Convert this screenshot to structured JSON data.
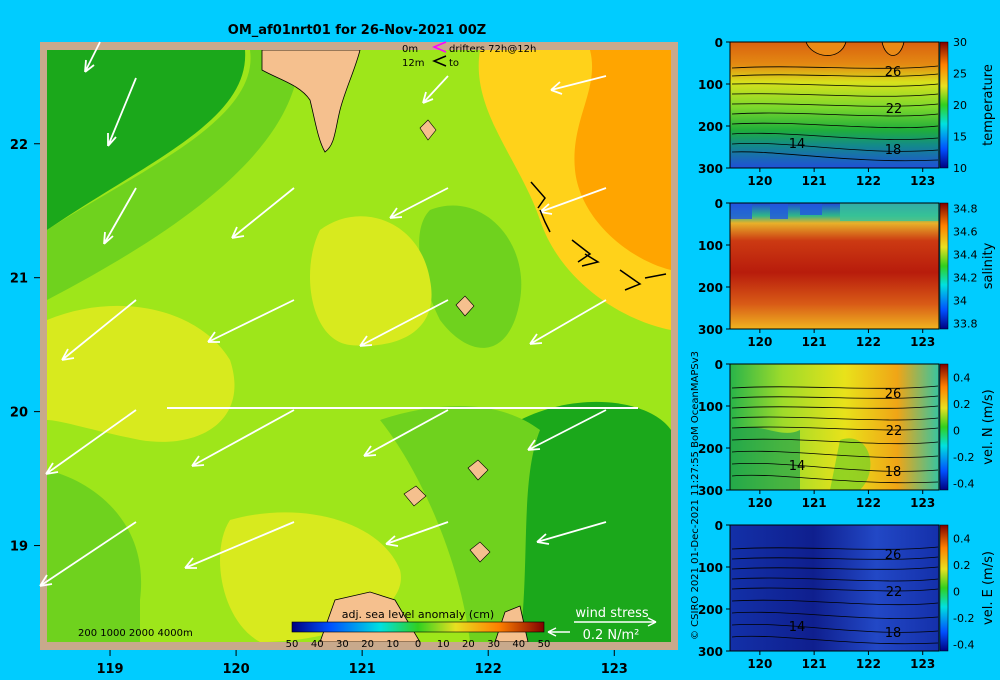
{
  "title": "OM_af01nrt01 for 26-Nov-2021 00Z",
  "legend": {
    "drifter_depth_0": "0m",
    "drifter_depth_12": "12m",
    "drifters_label": "drifters 72h@12h",
    "to_label": "to"
  },
  "map": {
    "x_ticks": [
      "119",
      "120",
      "121",
      "122",
      "123"
    ],
    "y_ticks": [
      "22",
      "21",
      "20",
      "19"
    ],
    "xlim": [
      118.5,
      123.45
    ],
    "ylim": [
      18.28,
      22.7
    ],
    "bathymetry_label": "200  1000  2000  4000m",
    "colorbar_title": "adj. sea level anomaly (cm)",
    "colorbar_ticks": [
      "50",
      "40",
      "30",
      "20",
      "10",
      "0",
      "10",
      "20",
      "30",
      "40",
      "50"
    ],
    "wind_stress_title": "wind stress",
    "wind_stress_scale": "0.2 N/m²",
    "colors": {
      "land": "#f5c08e",
      "frame": "#c8a98c",
      "low": "#1ba81b",
      "mid": "#9ee61a",
      "high": "#ffa500"
    }
  },
  "side_credit": "© CSIRO 2021   01-Dec-2021 11:27:55  BoM OceanMAPSv3",
  "chart_data": [
    {
      "type": "heatmap",
      "ylabel": "temperature",
      "x_ticks": [
        "120",
        "121",
        "122",
        "123"
      ],
      "y_ticks": [
        "0",
        "100",
        "200",
        "300"
      ],
      "colorbar_ticks": [
        "30",
        "25",
        "20",
        "15",
        "10"
      ],
      "contour_labels": [
        "26",
        "22",
        "14",
        "18"
      ],
      "ylim": [
        300,
        0
      ],
      "clim": [
        10,
        30
      ]
    },
    {
      "type": "heatmap",
      "ylabel": "salinity",
      "x_ticks": [
        "120",
        "121",
        "122",
        "123"
      ],
      "y_ticks": [
        "0",
        "100",
        "200",
        "300"
      ],
      "colorbar_ticks": [
        "34.8",
        "34.6",
        "34.4",
        "34.2",
        "34",
        "33.8"
      ],
      "ylim": [
        300,
        0
      ],
      "clim": [
        33.75,
        34.85
      ]
    },
    {
      "type": "heatmap",
      "ylabel": "vel. N (m/s)",
      "x_ticks": [
        "120",
        "121",
        "122",
        "123"
      ],
      "y_ticks": [
        "0",
        "100",
        "200",
        "300"
      ],
      "colorbar_ticks": [
        "0.4",
        "0.2",
        "0",
        "-0.2",
        "-0.4"
      ],
      "contour_labels": [
        "26",
        "22",
        "14",
        "18"
      ],
      "ylim": [
        300,
        0
      ],
      "clim": [
        -0.45,
        0.5
      ]
    },
    {
      "type": "heatmap",
      "ylabel": "vel. E (m/s)",
      "x_ticks": [
        "120",
        "121",
        "122",
        "123"
      ],
      "y_ticks": [
        "0",
        "100",
        "200",
        "300"
      ],
      "colorbar_ticks": [
        "0.4",
        "0.2",
        "0",
        "-0.2",
        "-0.4"
      ],
      "contour_labels": [
        "26",
        "22",
        "14",
        "18"
      ],
      "ylim": [
        300,
        0
      ],
      "clim": [
        -0.45,
        0.5
      ]
    }
  ]
}
